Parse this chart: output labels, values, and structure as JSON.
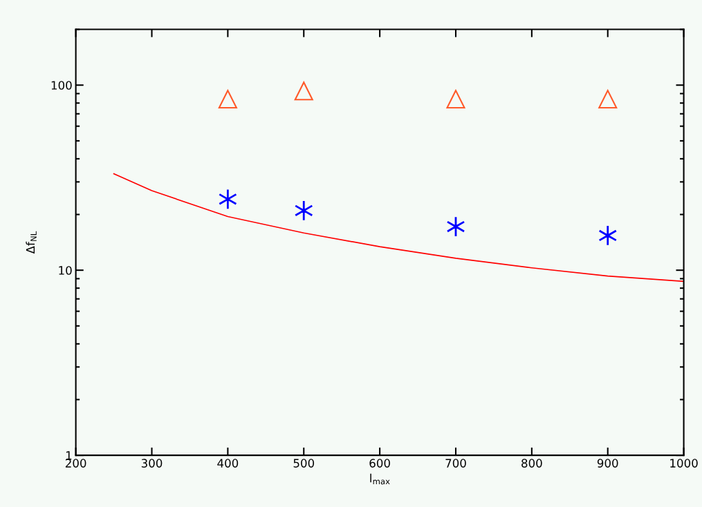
{
  "chart_data": {
    "type": "scatter",
    "xlabel": "l$_{max}$",
    "ylabel": "Δf$_{NL}$",
    "log": "y",
    "xlim": [
      200,
      1000
    ],
    "xticks": [
      200,
      300,
      400,
      500,
      600,
      700,
      800,
      900,
      1000
    ],
    "ylim": [
      1,
      200
    ],
    "yticks": [
      1,
      10,
      100
    ],
    "grid": false,
    "series": [
      {
        "marker": "triangle",
        "color": "#ff5a2a",
        "x": [
          400,
          500,
          700,
          900
        ],
        "values": [
          84,
          93,
          84,
          84
        ]
      },
      {
        "marker": "cross",
        "color": "#0000ff",
        "x": [
          400,
          500,
          700,
          900
        ],
        "values": [
          24.2,
          21,
          17.2,
          15.4
        ]
      },
      {
        "type": "line",
        "marker": "none",
        "line_style": "solid",
        "color": "#ff0000",
        "x": [
          250,
          300,
          400,
          500,
          600,
          700,
          800,
          900,
          1000
        ],
        "values": [
          33.2,
          26.9,
          19.5,
          15.9,
          13.4,
          11.6,
          10.3,
          9.3,
          8.7
        ]
      }
    ]
  }
}
